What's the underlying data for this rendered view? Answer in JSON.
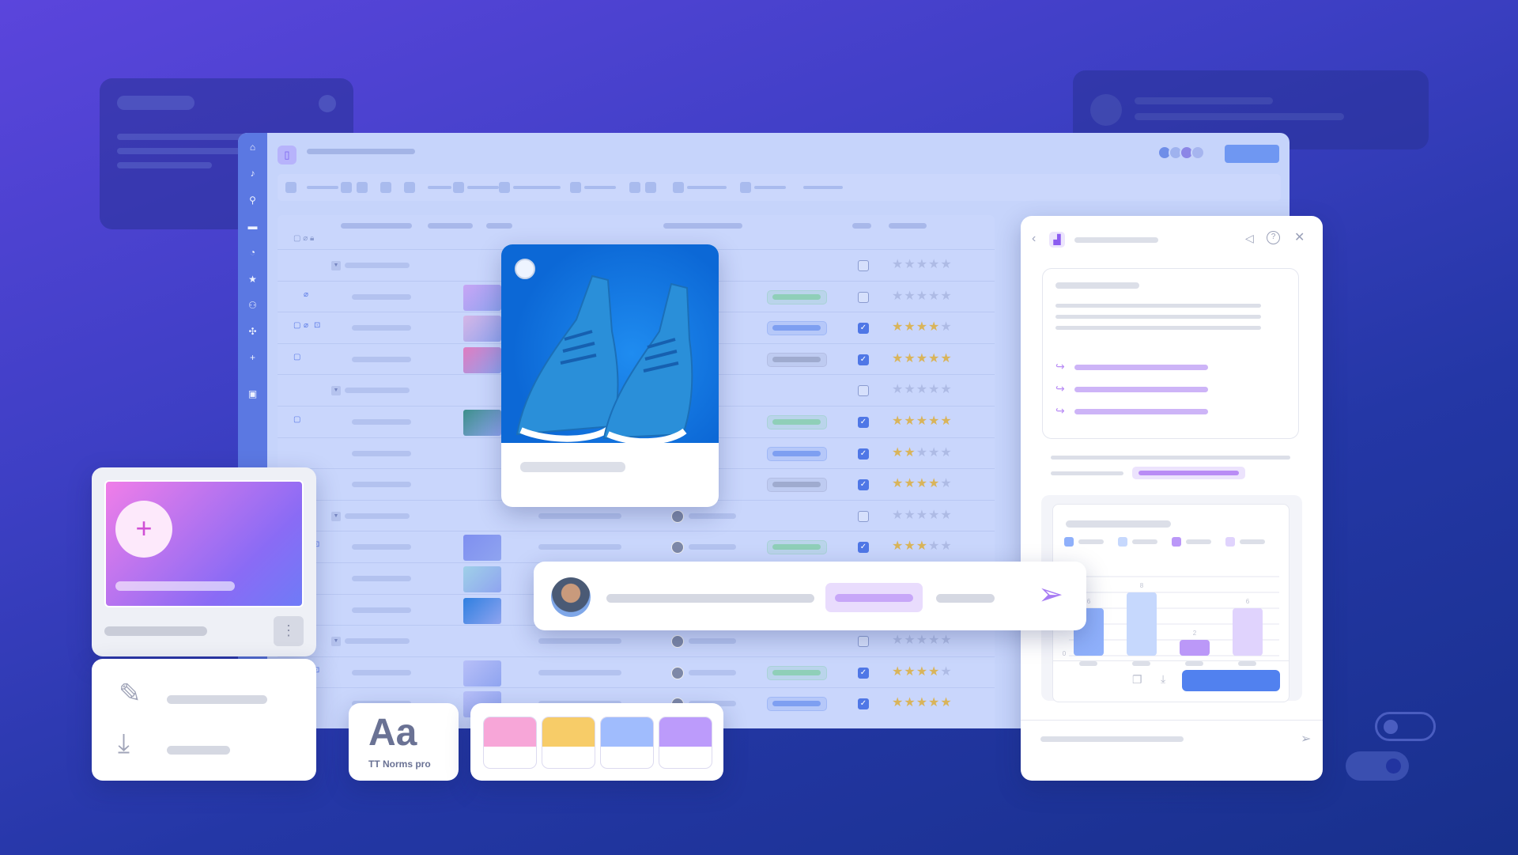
{
  "font_card": {
    "sample": "Aa",
    "font_name": "TT Norms pro"
  },
  "palette": {
    "colors": [
      "#f7a6d8",
      "#f7cc68",
      "#a0bcfd",
      "#bc9bfb"
    ]
  },
  "colors": {
    "accent": "#4f7ff0",
    "sidebar": "#5b78e2",
    "purple": "#b98cf5",
    "green": "#8fcfb8"
  },
  "sidebar": {
    "icons": [
      "home-icon",
      "bell-icon",
      "search-icon",
      "folder-icon",
      "clock-icon",
      "star-icon",
      "users-icon",
      "apps-icon",
      "plus-icon",
      "calendar-icon"
    ]
  },
  "table": {
    "rows": [
      {
        "group": true,
        "icons": [],
        "thumb": null,
        "pill": null,
        "checked": false,
        "rating": 0
      },
      {
        "group": false,
        "icons": [
          "attachment-icon"
        ],
        "thumb": "#c8a5f5",
        "pill": "green",
        "checked": false,
        "rating": 0
      },
      {
        "group": false,
        "icons": [
          "comment-icon",
          "attachment-icon",
          "lock-icon"
        ],
        "thumb": "#d6b6e6",
        "pill": "blue",
        "checked": true,
        "rating": 4
      },
      {
        "group": false,
        "icons": [
          "comment-icon"
        ],
        "thumb": "#e07cc0",
        "pill": "gray",
        "checked": true,
        "rating": 5
      },
      {
        "group": true,
        "icons": [],
        "thumb": null,
        "pill": null,
        "checked": false,
        "rating": 0
      },
      {
        "group": false,
        "icons": [
          "comment-icon"
        ],
        "thumb": "#3c8f8a",
        "pill": "green",
        "checked": true,
        "rating": 5
      },
      {
        "group": false,
        "icons": [],
        "thumb": null,
        "pill": "blue",
        "checked": true,
        "rating": 2
      },
      {
        "group": false,
        "icons": [],
        "thumb": null,
        "pill": "gray",
        "checked": true,
        "rating": 4
      },
      {
        "group": true,
        "icons": [],
        "thumb": null,
        "pill": null,
        "checked": false,
        "rating": 0
      },
      {
        "group": false,
        "icons": [
          "lock-icon"
        ],
        "thumb": "#7f8ff0",
        "pill": "green",
        "checked": true,
        "rating": 3
      },
      {
        "group": false,
        "icons": [],
        "thumb": "#9fd0e8",
        "pill": null,
        "checked": null,
        "rating": null
      },
      {
        "group": false,
        "icons": [],
        "thumb": "#2f7fe0",
        "pill": null,
        "checked": null,
        "rating": null
      },
      {
        "group": true,
        "icons": [],
        "thumb": null,
        "pill": null,
        "checked": false,
        "rating": 0
      },
      {
        "group": false,
        "icons": [
          "lock-icon"
        ],
        "thumb": "#b7bff8",
        "pill": "green",
        "checked": true,
        "rating": 4
      },
      {
        "group": false,
        "icons": [],
        "thumb": "#b7bff8",
        "pill": "blue",
        "checked": true,
        "rating": 5
      }
    ]
  },
  "chart_data": {
    "type": "bar",
    "categories": [
      "",
      "",
      "",
      ""
    ],
    "values": [
      6,
      8,
      2,
      6
    ],
    "colors": [
      "#8fb0fb",
      "#c6d8fd",
      "#bb98f8",
      "#e0d3fd"
    ],
    "ylim": [
      0,
      10
    ],
    "ytick_label": "0",
    "grid": true,
    "legend": "top"
  }
}
